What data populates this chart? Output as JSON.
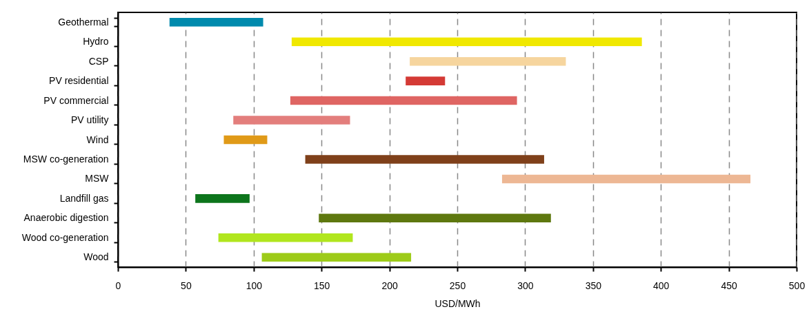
{
  "chart_data": {
    "type": "bar",
    "orientation": "horizontal",
    "xlabel": "USD/MWh",
    "categories": [
      "Geothermal",
      "Hydro",
      "CSP",
      "PV residential",
      "PV commercial",
      "PV utility",
      "Wind",
      "MSW co-generation",
      "MSW",
      "Landfill gas",
      "Anaerobic digestion",
      "Wood co-generation",
      "Wood"
    ],
    "base": [
      38,
      128,
      215,
      212,
      127,
      85,
      78,
      138,
      283,
      57,
      148,
      74,
      106
    ],
    "values": [
      69,
      258,
      115,
      29,
      167,
      86,
      32,
      176,
      183,
      40,
      171,
      99,
      110
    ],
    "colors": [
      "#008aad",
      "#f0e800",
      "#f6d59e",
      "#d43a35",
      "#df6563",
      "#e37e7c",
      "#e09a18",
      "#7f401a",
      "#edb794",
      "#0d751c",
      "#5e780f",
      "#b1e61e",
      "#9dcb19"
    ],
    "xlim": [
      0,
      500
    ],
    "xticks": [
      0,
      50,
      100,
      150,
      200,
      250,
      300,
      350,
      400,
      450,
      500
    ],
    "grid": "x"
  }
}
